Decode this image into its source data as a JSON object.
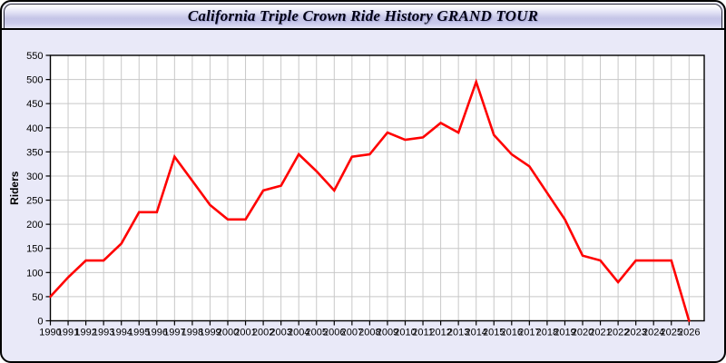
{
  "header": {
    "title": "California Triple Crown Ride History GRAND TOUR"
  },
  "colors": {
    "page_background": "#e9e9f8",
    "plot_background": "#ffffff",
    "gridline": "#c8c8c8",
    "axis": "#000000",
    "line": "#ff0000",
    "header_mid": "#c5c5e7"
  },
  "chart_data": {
    "type": "line",
    "title": "California Triple Crown Ride History GRAND TOUR",
    "xlabel": "",
    "ylabel": "Riders",
    "ylim": [
      0,
      550
    ],
    "ytick_step": 50,
    "yticks": [
      0,
      50,
      100,
      150,
      200,
      250,
      300,
      350,
      400,
      450,
      500,
      550
    ],
    "grid": true,
    "legend": "none",
    "line_color": "#ff0000",
    "x": [
      1990,
      1991,
      1992,
      1993,
      1994,
      1995,
      1996,
      1997,
      1998,
      1999,
      2000,
      2001,
      2002,
      2003,
      2004,
      2005,
      2006,
      2007,
      2008,
      2009,
      2010,
      2011,
      2012,
      2013,
      2014,
      2015,
      2016,
      2017,
      2018,
      2019,
      2020,
      2021,
      2022,
      2023,
      2024,
      2025,
      2026
    ],
    "series": [
      {
        "name": "Riders",
        "values": [
          50,
          90,
          125,
          125,
          160,
          225,
          225,
          340,
          290,
          240,
          210,
          210,
          270,
          280,
          345,
          310,
          270,
          340,
          345,
          390,
          375,
          380,
          410,
          390,
          495,
          385,
          345,
          320,
          265,
          210,
          135,
          125,
          80,
          125,
          125,
          125,
          0
        ]
      }
    ]
  }
}
